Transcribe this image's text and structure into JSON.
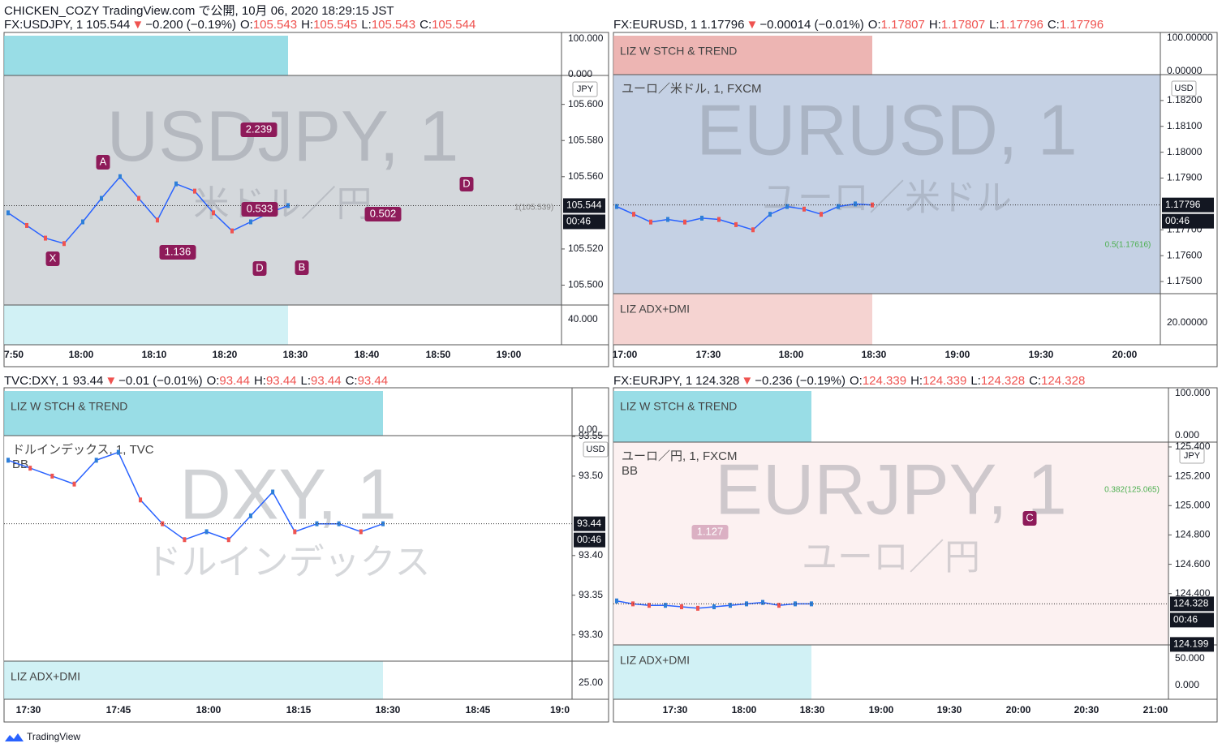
{
  "header": {
    "publisher": "CHICKEN_COZY TradingView.com で公開, 10月 06, 2020 18:29:15 JST"
  },
  "footer": {
    "brand": "TradingView"
  },
  "panels": [
    {
      "symbol": "FX:USDJPY, 1",
      "last": "105.544",
      "arrow": "▼",
      "change": "−0.200 (−0.19%)",
      "ohlc": [
        [
          "O:",
          "105.543"
        ],
        [
          "H:",
          "105.545"
        ],
        [
          "L:",
          "105.543"
        ],
        [
          "C:",
          "105.544"
        ]
      ],
      "watermark": "USDJPY, 1",
      "watermark_sub": "米ドル／円",
      "currency": "JPY",
      "legend": [],
      "indicators": [],
      "ylim": [
        105.489,
        105.616
      ],
      "yticks": [
        {
          "value": 105.6,
          "label": "105.600"
        },
        {
          "value": 105.58,
          "label": "105.580"
        },
        {
          "value": 105.56,
          "label": "105.560"
        },
        {
          "value": 105.52,
          "label": "105.520"
        },
        {
          "value": 105.5,
          "label": "105.500"
        }
      ],
      "indicator_ticks": [
        "100.000",
        "0.000",
        "40.000"
      ],
      "price_tags": [
        "105.544",
        "00:46"
      ],
      "times": [
        "7:50",
        "18:00",
        "18:10",
        "18:20",
        "18:30",
        "18:40",
        "18:50",
        "19:00"
      ],
      "closes": [
        105.54,
        105.533,
        105.526,
        105.523,
        105.535,
        105.548,
        105.56,
        105.548,
        105.536,
        105.556,
        105.552,
        105.54,
        105.53,
        105.535,
        105.54,
        105.544
      ],
      "annotations": [
        "A",
        "X",
        "B",
        "D",
        "D",
        "2.239",
        "0.533",
        "1.136",
        "0.502",
        "1(105.539)"
      ]
    },
    {
      "symbol": "FX:EURUSD, 1",
      "last": "1.17796",
      "arrow": "▼",
      "change": "−0.00014 (−0.01%)",
      "ohlc": [
        [
          "O:",
          "1.17807"
        ],
        [
          "H:",
          "1.17807"
        ],
        [
          "L:",
          "1.17796"
        ],
        [
          "C:",
          "1.17796"
        ]
      ],
      "watermark": "EURUSD, 1",
      "watermark_sub": "ユーロ／米ドル",
      "currency": "USD",
      "legend": [
        "ユーロ／米ドル, 1, FXCM"
      ],
      "indicators": [
        "LIZ W STCH & TREND",
        "LIZ ADX+DMI"
      ],
      "ylim": [
        1.17453,
        1.183
      ],
      "yticks": [
        {
          "value": 1.182,
          "label": "1.18200"
        },
        {
          "value": 1.181,
          "label": "1.18100"
        },
        {
          "value": 1.18,
          "label": "1.18000"
        },
        {
          "value": 1.179,
          "label": "1.17900"
        },
        {
          "value": 1.177,
          "label": "1.17700"
        },
        {
          "value": 1.176,
          "label": "1.17600"
        },
        {
          "value": 1.175,
          "label": "1.17500"
        }
      ],
      "indicator_ticks": [
        "100.00000",
        "0.00000",
        "20.00000"
      ],
      "price_tags": [
        "1.17796",
        "00:46"
      ],
      "times": [
        "17:00",
        "17:30",
        "18:00",
        "18:30",
        "19:00",
        "19:30",
        "20:00"
      ],
      "closes": [
        1.1779,
        1.1776,
        1.1773,
        1.1774,
        1.1773,
        1.17745,
        1.1774,
        1.1772,
        1.177,
        1.1776,
        1.1779,
        1.1778,
        1.1776,
        1.1779,
        1.178,
        1.17796
      ],
      "annotations": [
        "0.5(1.17616)"
      ]
    },
    {
      "symbol": "TVC:DXY, 1",
      "last": "93.44",
      "arrow": "▼",
      "change": "−0.01 (−0.01%)",
      "ohlc": [
        [
          "O:",
          "93.44"
        ],
        [
          "H:",
          "93.44"
        ],
        [
          "L:",
          "93.44"
        ],
        [
          "C:",
          "93.44"
        ]
      ],
      "watermark": "DXY, 1",
      "watermark_sub": "ドルインデックス",
      "currency": "USD",
      "legend": [
        "ドルインデックス, 1, TVC",
        "BB"
      ],
      "indicators": [
        "LIZ W STCH & TREND",
        "LIZ ADX+DMI"
      ],
      "ylim": [
        93.267,
        93.551
      ],
      "yticks": [
        {
          "value": 93.55,
          "label": "93.55"
        },
        {
          "value": 93.5,
          "label": "93.50"
        },
        {
          "value": 93.4,
          "label": "93.40"
        },
        {
          "value": 93.35,
          "label": "93.35"
        },
        {
          "value": 93.3,
          "label": "93.30"
        }
      ],
      "indicator_ticks": [
        "0.00",
        "25.00"
      ],
      "price_tags": [
        "93.44",
        "00:46"
      ],
      "times": [
        "17:30",
        "17:45",
        "18:00",
        "18:15",
        "18:30",
        "18:45",
        "19:0"
      ],
      "closes": [
        93.52,
        93.51,
        93.5,
        93.49,
        93.52,
        93.53,
        93.47,
        93.44,
        93.42,
        93.43,
        93.42,
        93.45,
        93.48,
        93.43,
        93.44,
        93.44,
        93.43,
        93.44
      ],
      "annotations": []
    },
    {
      "symbol": "FX:EURJPY, 1",
      "last": "124.328",
      "arrow": "▼",
      "change": "−0.236 (−0.19%)",
      "ohlc": [
        [
          "O:",
          "124.339"
        ],
        [
          "H:",
          "124.339"
        ],
        [
          "L:",
          "124.328"
        ],
        [
          "C:",
          "124.328"
        ]
      ],
      "watermark": "EURJPY, 1",
      "watermark_sub": "ユーロ／円",
      "currency": "JPY",
      "legend": [
        "ユーロ／円, 1, FXCM",
        "BB"
      ],
      "indicators": [
        "LIZ W STCH & TREND",
        "LIZ ADX+DMI"
      ],
      "ylim": [
        124.05,
        125.433
      ],
      "yticks": [
        {
          "value": 125.4,
          "label": "125.400"
        },
        {
          "value": 125.2,
          "label": "125.200"
        },
        {
          "value": 125,
          "label": "125.000"
        },
        {
          "value": 124.8,
          "label": "124.800"
        },
        {
          "value": 124.6,
          "label": "124.600"
        },
        {
          "value": 124.4,
          "label": "124.400"
        }
      ],
      "indicator_ticks": [
        "100.000",
        "0.000",
        "50.000",
        "0.000"
      ],
      "price_tags": [
        "124.328",
        "00:46",
        "124.199"
      ],
      "times": [
        "17:30",
        "18:00",
        "18:30",
        "19:00",
        "19:30",
        "20:00",
        "20:30",
        "21:00"
      ],
      "closes": [
        124.35,
        124.33,
        124.32,
        124.32,
        124.31,
        124.3,
        124.31,
        124.32,
        124.33,
        124.34,
        124.32,
        124.33,
        124.33
      ],
      "annotations": [
        "0.382(125.065)",
        "C",
        "1.127"
      ]
    }
  ]
}
